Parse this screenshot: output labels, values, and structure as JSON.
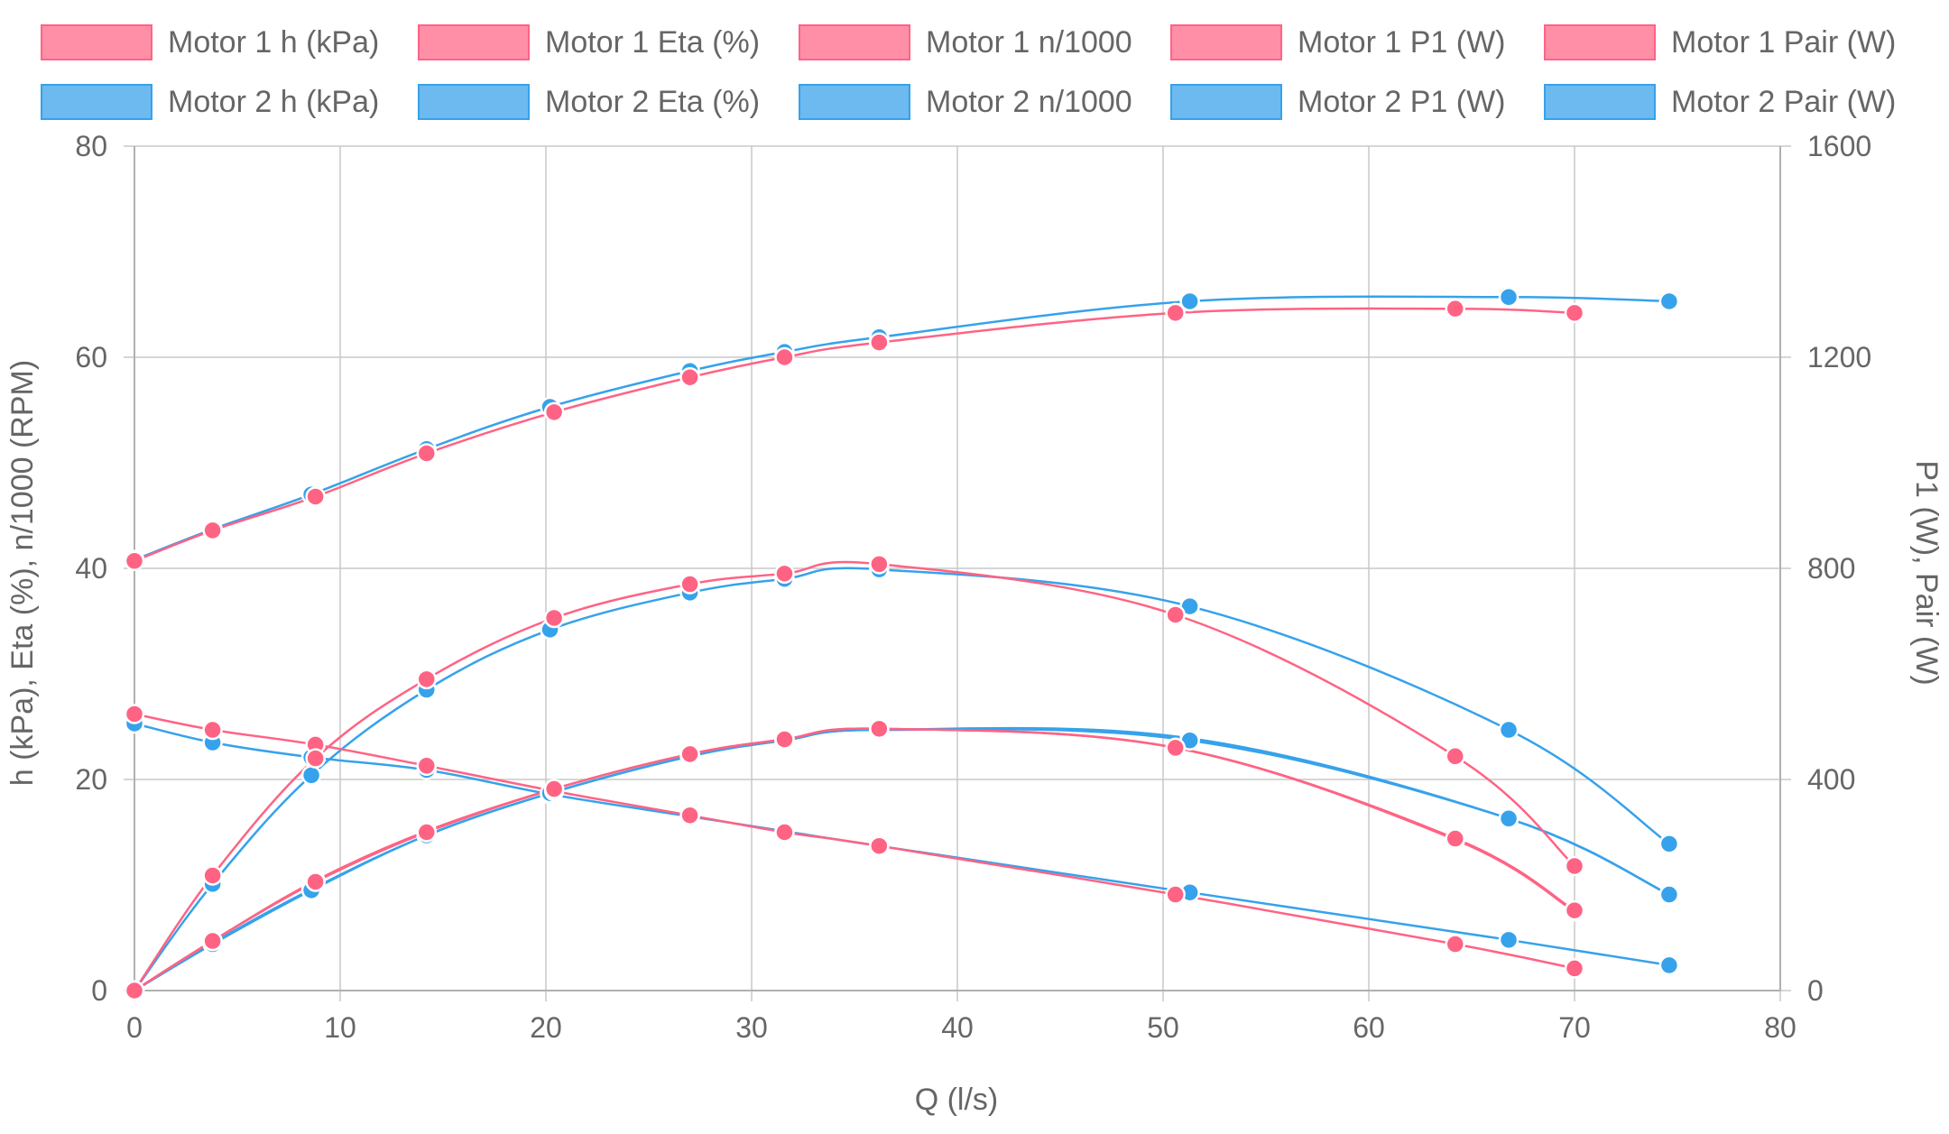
{
  "chart_data": {
    "type": "line",
    "title": "",
    "xlabel": "Q (l/s)",
    "ylabel_left": "h (kPa), Eta (%), n/1000 (RPM)",
    "ylabel_right": "P1 (W), Pair (W)",
    "xlim": [
      0,
      80
    ],
    "ylim_left": [
      0,
      80
    ],
    "ylim_right": [
      0,
      1600
    ],
    "x_ticks": [
      0,
      10,
      20,
      30,
      40,
      50,
      60,
      70,
      80
    ],
    "y_left_ticks": [
      0,
      20,
      40,
      60,
      80
    ],
    "y_right_ticks": [
      0,
      400,
      800,
      1200,
      1600
    ],
    "grid": true,
    "legend_position": "top",
    "colors": {
      "motor1_line": "#ff6384",
      "motor1_fill": "#ff8fa6",
      "motor2_line": "#36a2eb",
      "motor2_fill": "#6cbaf0"
    },
    "series": [
      {
        "name": "Motor 1 h (kPa)",
        "motor": 1,
        "axis": "left",
        "x": [
          0,
          3.8,
          8.8,
          14.2,
          20.4,
          27,
          31.6,
          36.2,
          50.6,
          64.2,
          70
        ],
        "values": [
          26.2,
          24.7,
          23.3,
          21.3,
          18.9,
          16.6,
          15,
          13.7,
          9.1,
          4.4,
          2.1
        ]
      },
      {
        "name": "Motor 1 Eta (%)",
        "motor": 1,
        "axis": "left",
        "x": [
          0,
          3.8,
          8.8,
          14.2,
          20.4,
          27,
          31.6,
          36.2,
          50.6,
          64.2,
          70
        ],
        "values": [
          0,
          4.7,
          10.4,
          15.1,
          19.1,
          22.4,
          23.8,
          24.8,
          23,
          14.3,
          7.5
        ]
      },
      {
        "name": "Motor 1 n/1000",
        "motor": 1,
        "axis": "left",
        "x": [
          0,
          3.8,
          8.8,
          14.2,
          20.4,
          27,
          31.6,
          36.2,
          50.6,
          64.2,
          70
        ],
        "values": [
          40.7,
          43.6,
          46.8,
          50.9,
          54.8,
          58.1,
          60,
          61.4,
          64.2,
          64.6,
          64.2
        ]
      },
      {
        "name": "Motor 1 P1 (W)",
        "motor": 1,
        "axis": "right",
        "x": [
          0,
          3.8,
          8.8,
          14.2,
          20.4,
          27,
          31.6,
          36.2,
          50.6,
          64.2,
          70
        ],
        "values": [
          0,
          218,
          440,
          590,
          706,
          770,
          790,
          808,
          712,
          444,
          236
        ]
      },
      {
        "name": "Motor 1 Pair (W)",
        "motor": 1,
        "axis": "right",
        "x": [
          0,
          3.8,
          8.8,
          14.2,
          20.4,
          27,
          31.6,
          36.2,
          50.6,
          64.2,
          70
        ],
        "values": [
          0,
          94,
          206,
          300,
          382,
          448,
          476,
          496,
          460,
          288,
          152
        ]
      },
      {
        "name": "Motor 2 h (kPa)",
        "motor": 2,
        "axis": "left",
        "x": [
          0,
          3.8,
          8.6,
          14.2,
          20.2,
          27,
          31.6,
          36.2,
          51.3,
          66.8,
          74.6
        ],
        "values": [
          25.3,
          23.5,
          22.1,
          20.9,
          18.6,
          16.5,
          15.1,
          13.7,
          9.3,
          4.8,
          2.4
        ]
      },
      {
        "name": "Motor 2 Eta (%)",
        "motor": 2,
        "axis": "left",
        "x": [
          0,
          3.8,
          8.6,
          14.2,
          20.2,
          27,
          31.6,
          36.2,
          51.3,
          66.8,
          74.6
        ],
        "values": [
          0,
          4.5,
          9.6,
          14.7,
          18.7,
          22.2,
          23.7,
          24.7,
          23.9,
          16.3,
          9.1
        ]
      },
      {
        "name": "Motor 2 n/1000",
        "motor": 2,
        "axis": "left",
        "x": [
          0,
          3.8,
          8.6,
          14.2,
          20.2,
          27,
          31.6,
          36.2,
          51.3,
          66.8,
          74.6
        ],
        "values": [
          40.8,
          43.7,
          47,
          51.3,
          55.3,
          58.7,
          60.5,
          61.9,
          65.3,
          65.7,
          65.3
        ]
      },
      {
        "name": "Motor 2 P1 (W)",
        "motor": 2,
        "axis": "right",
        "x": [
          0,
          3.8,
          8.6,
          14.2,
          20.2,
          27,
          31.6,
          36.2,
          51.3,
          66.8,
          74.6
        ],
        "values": [
          0,
          202,
          408,
          570,
          684,
          754,
          780,
          798,
          728,
          494,
          278
        ]
      },
      {
        "name": "Motor 2 Pair (W)",
        "motor": 2,
        "axis": "right",
        "x": [
          0,
          3.8,
          8.6,
          14.2,
          20.2,
          27,
          31.6,
          36.2,
          51.3,
          66.8,
          74.6
        ],
        "values": [
          0,
          88,
          190,
          294,
          374,
          444,
          474,
          494,
          474,
          326,
          182
        ]
      }
    ]
  }
}
